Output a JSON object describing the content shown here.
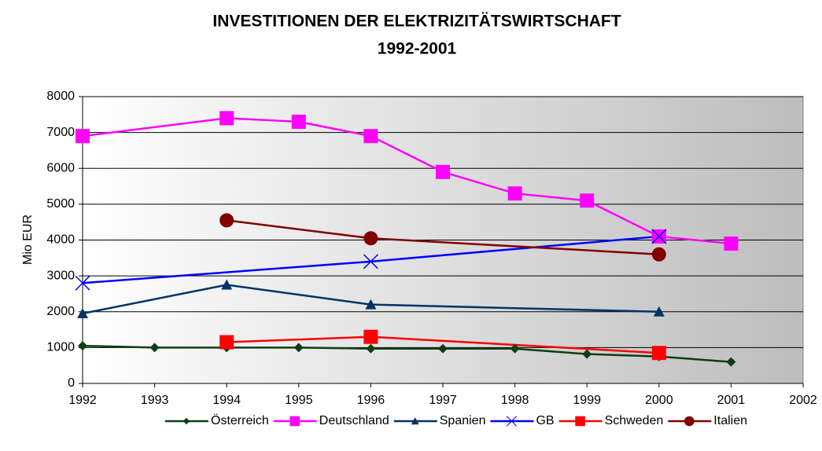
{
  "chart_data": {
    "type": "line",
    "title": [
      "INVESTITIONEN DER ELEKTRIZITÄTSWIRTSCHAFT",
      "1992-2001"
    ],
    "ylabel": "Mio EUR",
    "xlim": [
      1992,
      2002
    ],
    "xticks": [
      1992,
      1993,
      1994,
      1995,
      1996,
      1997,
      1998,
      1999,
      2000,
      2001,
      2002
    ],
    "ylim": [
      0,
      8000
    ],
    "yticks": [
      0,
      1000,
      2000,
      3000,
      4000,
      5000,
      6000,
      7000,
      8000
    ],
    "grid": true,
    "legend": "bottom",
    "series": [
      {
        "name": "Österreich",
        "color": "#0d3d12",
        "marker": "diamond",
        "x": [
          1992,
          1993,
          1994,
          1995,
          1996,
          1997,
          1998,
          1999,
          2000,
          2001
        ],
        "values": [
          1050,
          1000,
          1000,
          1000,
          970,
          970,
          970,
          820,
          750,
          600
        ]
      },
      {
        "name": "Deutschland",
        "color": "#ff00ff",
        "marker": "square",
        "x": [
          1992,
          1994,
          1995,
          1996,
          1997,
          1998,
          1999,
          2000,
          2001
        ],
        "values": [
          6900,
          7400,
          7300,
          6900,
          5900,
          5300,
          5100,
          4100,
          3900
        ]
      },
      {
        "name": "Spanien",
        "color": "#003366",
        "marker": "triangle",
        "x": [
          1992,
          1994,
          1996,
          2000
        ],
        "values": [
          1950,
          2750,
          2200,
          2000
        ]
      },
      {
        "name": "GB",
        "color": "#0000ff",
        "marker": "x",
        "x": [
          1992,
          1996,
          2000
        ],
        "values": [
          2800,
          3400,
          4100
        ]
      },
      {
        "name": "Schweden",
        "color": "#ff0000",
        "marker": "square",
        "x": [
          1994,
          1996,
          2000
        ],
        "values": [
          1150,
          1300,
          850
        ]
      },
      {
        "name": "Italien",
        "color": "#800000",
        "marker": "circle",
        "x": [
          1994,
          1996,
          2000
        ],
        "values": [
          4550,
          4050,
          3600
        ]
      }
    ]
  }
}
